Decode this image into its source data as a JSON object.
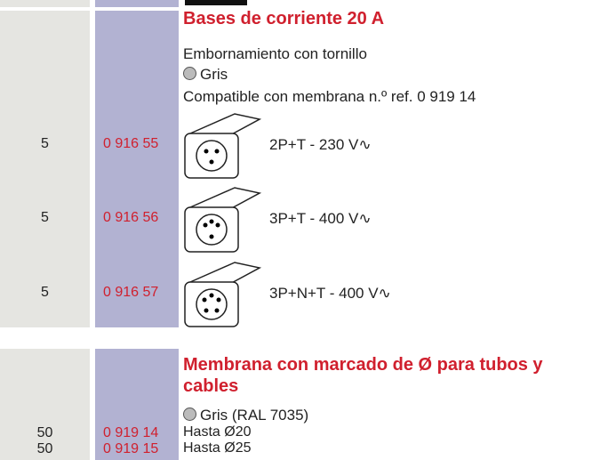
{
  "sections": [
    {
      "title": "Bases de corriente 20 A",
      "lines": [
        "Embornamiento con tornillo",
        "Gris",
        "Compatible con membrana n.º ref. 0 919 14"
      ],
      "items": [
        {
          "qty": "5",
          "ref": "0 916 55",
          "desc": "2P+T - 230 V∿"
        },
        {
          "qty": "5",
          "ref": "0 916 56",
          "desc": "3P+T - 400 V∿"
        },
        {
          "qty": "5",
          "ref": "0 916 57",
          "desc": "3P+N+T - 400 V∿"
        }
      ]
    },
    {
      "title": "Membrana con marcado de Ø para tubos y cables",
      "lines": [
        "Gris (RAL 7035)"
      ],
      "items": [
        {
          "qty": "50",
          "ref": "0 919 14",
          "desc": "Hasta Ø20"
        },
        {
          "qty": "50",
          "ref": "0 919 15",
          "desc": "Hasta Ø25"
        }
      ]
    }
  ]
}
